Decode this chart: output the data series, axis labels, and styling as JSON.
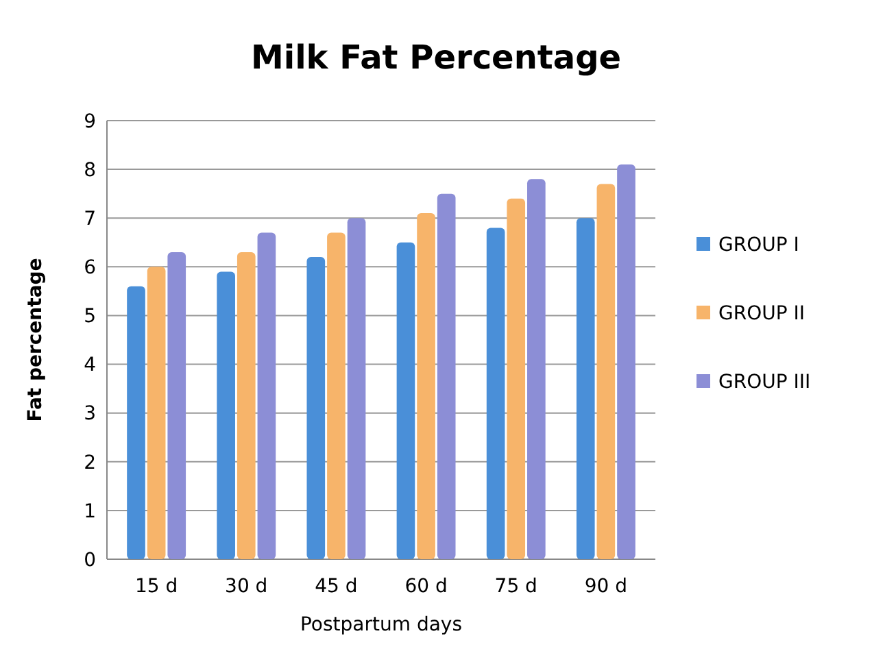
{
  "chart_data": {
    "type": "bar",
    "title": "Milk Fat Percentage",
    "xlabel": "Postpartum days",
    "ylabel": "Fat percentage",
    "categories": [
      "15 d",
      "30 d",
      "45 d",
      "60 d",
      "75 d",
      "90 d"
    ],
    "series": [
      {
        "name": "GROUP I",
        "color": "#4a8fd8",
        "values": [
          5.6,
          5.9,
          6.2,
          6.5,
          6.8,
          7.0
        ]
      },
      {
        "name": "GROUP II",
        "color": "#f7b46a",
        "values": [
          6.0,
          6.3,
          6.7,
          7.1,
          7.4,
          7.7
        ]
      },
      {
        "name": "GROUP III",
        "color": "#8c8ed6",
        "values": [
          6.3,
          6.7,
          7.0,
          7.5,
          7.8,
          8.1
        ]
      }
    ],
    "ylim": [
      0,
      9
    ],
    "yticks": [
      0,
      1,
      2,
      3,
      4,
      5,
      6,
      7,
      8,
      9
    ],
    "grid": "y",
    "legend": "right"
  }
}
